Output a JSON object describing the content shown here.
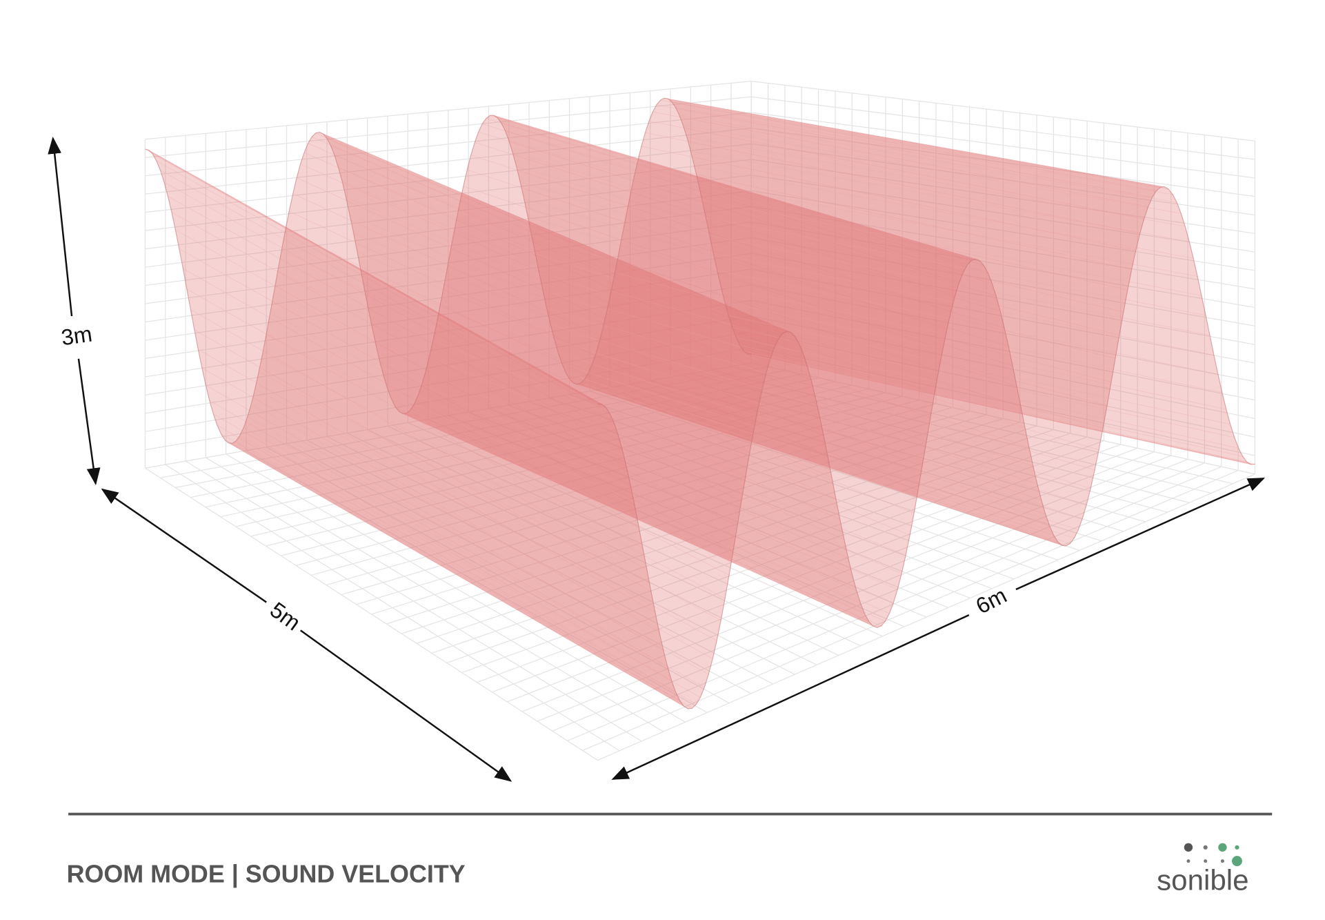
{
  "labels": {
    "height": "3m",
    "depth": "5m",
    "length": "6m"
  },
  "footer": {
    "title": "ROOM MODE | SOUND VELOCITY",
    "brand": "sonible"
  }
}
